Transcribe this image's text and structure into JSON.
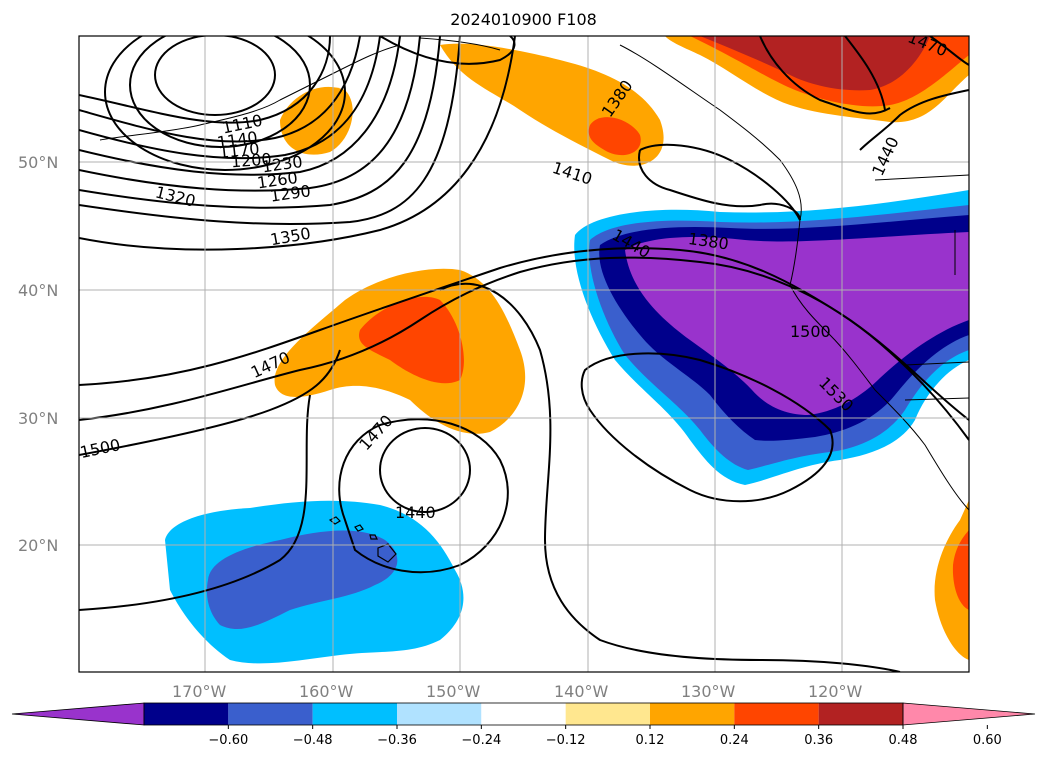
{
  "title": "2024010900 F108",
  "lat_labels": [
    "50°N",
    "40°N",
    "30°N",
    "20°N"
  ],
  "lon_labels": [
    "170°W",
    "160°W",
    "150°W",
    "140°W",
    "130°W",
    "120°W"
  ],
  "contour_labels": [
    "1110",
    "1140",
    "1170",
    "1200",
    "1230",
    "1260",
    "1290",
    "1320",
    "1350",
    "1380",
    "1380",
    "1410",
    "1440",
    "1440",
    "1440",
    "1470",
    "1470",
    "1470",
    "1500",
    "1500",
    "1530"
  ],
  "colorbar": {
    "colors": [
      "#9933cc",
      "#00008b",
      "#3a5fcd",
      "#00bfff",
      "#b0e2ff",
      "#ffffff",
      "#ffe78f",
      "#ffa500",
      "#ff4500",
      "#b22222",
      "#ff88aa"
    ],
    "tick_labels": [
      "−0.60",
      "−0.48",
      "−0.36",
      "−0.24",
      "−0.12",
      "0.12",
      "0.24",
      "0.36",
      "0.48",
      "0.60"
    ]
  }
}
